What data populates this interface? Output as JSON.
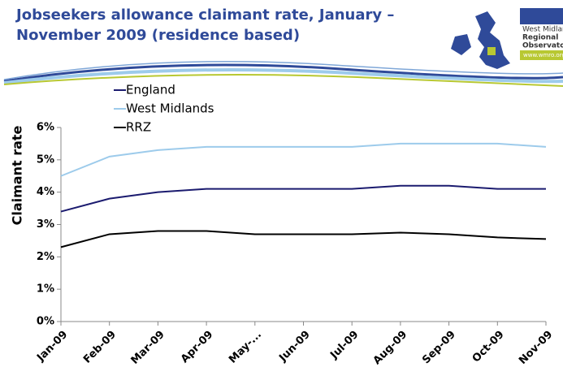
{
  "chart_data": {
    "type": "line",
    "title": "Jobseekers allowance claimant rate, January – November 2009 (residence based)",
    "y_label": "Claimant rate",
    "categories": [
      "Jan-09",
      "Feb-09",
      "Mar-09",
      "Apr-09",
      "May-...",
      "Jun-09",
      "Jul-09",
      "Aug-09",
      "Sep-09",
      "Oct-09",
      "Nov-09"
    ],
    "series": [
      {
        "name": "England",
        "color": "#1b1b6f",
        "values": [
          3.4,
          3.8,
          4.0,
          4.1,
          4.1,
          4.1,
          4.1,
          4.2,
          4.2,
          4.1,
          4.1
        ]
      },
      {
        "name": "West Midlands",
        "color": "#9dcbeb",
        "values": [
          4.5,
          5.1,
          5.3,
          5.4,
          5.4,
          5.4,
          5.4,
          5.5,
          5.5,
          5.5,
          5.4
        ]
      },
      {
        "name": "RRZ",
        "color": "#000000",
        "values": [
          2.3,
          2.7,
          2.8,
          2.8,
          2.7,
          2.7,
          2.7,
          2.75,
          2.7,
          2.6,
          2.55
        ]
      }
    ],
    "ylim": [
      0,
      6
    ],
    "yticks": [
      {
        "value": 0,
        "label": "0%"
      },
      {
        "value": 1,
        "label": "1%"
      },
      {
        "value": 2,
        "label": "2%"
      },
      {
        "value": 3,
        "label": "3%"
      },
      {
        "value": 4,
        "label": "4%"
      },
      {
        "value": 5,
        "label": "5%"
      },
      {
        "value": 6,
        "label": "6%"
      }
    ],
    "grid": false,
    "legend": "top-left"
  },
  "logo": {
    "lines": [
      "West Midlands",
      "Regional",
      "Observatory"
    ],
    "url": "www.wmro.org"
  }
}
